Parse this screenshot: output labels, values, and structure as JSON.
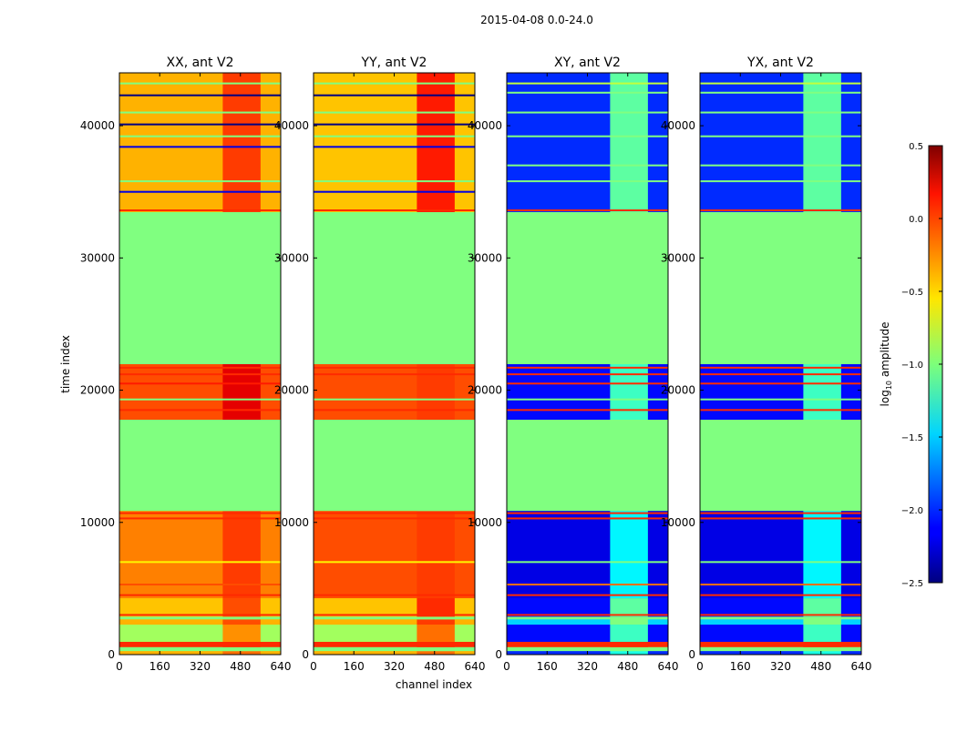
{
  "chart_data": {
    "type": "heatmap",
    "title": "2015-04-08 0.0-24.0",
    "xlabel": "channel index",
    "ylabel": "time index",
    "xlim": [
      0,
      640
    ],
    "ylim": [
      0,
      44000
    ],
    "xticks": [
      "0",
      "160",
      "320",
      "480",
      "640"
    ],
    "xtick_values": [
      0,
      160,
      320,
      480,
      640
    ],
    "yticks": [
      "0",
      "10000",
      "20000",
      "30000",
      "40000"
    ],
    "ytick_values": [
      0,
      10000,
      20000,
      30000,
      40000
    ],
    "colorbar": {
      "label_prefix": "log",
      "label_sub": "10",
      "label_suffix": " amplitude",
      "range": [
        -2.5,
        0.5
      ],
      "ticks": [
        "0.5",
        "0.0",
        "−0.5",
        "−1.0",
        "−1.5",
        "−2.0",
        "−2.5"
      ],
      "tick_values": [
        0.5,
        0.0,
        -0.5,
        -1.0,
        -1.5,
        -2.0,
        -2.5
      ],
      "colormap": "jet"
    },
    "hot_channel_range": [
      410,
      560
    ],
    "panels": [
      {
        "title": "XX, ant V2",
        "bands": [
          {
            "t0": 0,
            "t1": 300,
            "value": -0.4,
            "hot": -0.2
          },
          {
            "t0": 300,
            "t1": 600,
            "value": -1.0,
            "hot": -1.0
          },
          {
            "t0": 600,
            "t1": 1000,
            "value": 0.0,
            "hot": 0.0
          },
          {
            "t0": 1000,
            "t1": 2300,
            "value": -0.9,
            "hot": -0.3
          },
          {
            "t0": 2300,
            "t1": 2700,
            "value": -0.4,
            "hot": -0.1
          },
          {
            "t0": 2700,
            "t1": 2900,
            "value": -1.0,
            "hot": -1.0
          },
          {
            "t0": 2900,
            "t1": 4300,
            "value": -0.45,
            "hot": -0.1
          },
          {
            "t0": 4300,
            "t1": 10900,
            "value": -0.25,
            "hot": -0.05
          },
          {
            "t0": 10900,
            "t1": 17800,
            "value": -1.0,
            "hot": -1.0
          },
          {
            "t0": 17800,
            "t1": 22000,
            "value": -0.1,
            "hot": 0.2
          },
          {
            "t0": 22000,
            "t1": 33500,
            "value": -1.0,
            "hot": -1.0
          },
          {
            "t0": 33500,
            "t1": 44000,
            "value": -0.4,
            "hot": -0.05
          }
        ],
        "stripes": [
          {
            "t": 3000,
            "value": 0.0
          },
          {
            "t": 4500,
            "value": 0.0
          },
          {
            "t": 5300,
            "value": -0.1
          },
          {
            "t": 7000,
            "value": -0.6
          },
          {
            "t": 10300,
            "value": 0.0
          },
          {
            "t": 10700,
            "value": 0.0
          },
          {
            "t": 18500,
            "value": 0.0
          },
          {
            "t": 19300,
            "value": -1.0
          },
          {
            "t": 20500,
            "value": 0.05
          },
          {
            "t": 21200,
            "value": 0.0
          },
          {
            "t": 21700,
            "value": 0.0
          },
          {
            "t": 33600,
            "value": 0.0
          },
          {
            "t": 35000,
            "value": -2.2
          },
          {
            "t": 35800,
            "value": -1.0
          },
          {
            "t": 38400,
            "value": -2.2
          },
          {
            "t": 39200,
            "value": -1.0
          },
          {
            "t": 40100,
            "value": -2.5
          },
          {
            "t": 41000,
            "value": -1.0
          },
          {
            "t": 42300,
            "value": -2.5
          },
          {
            "t": 43200,
            "value": -1.0
          }
        ]
      },
      {
        "title": "YY, ant V2",
        "bands": [
          {
            "t0": 0,
            "t1": 300,
            "value": -0.4,
            "hot": -0.2
          },
          {
            "t0": 300,
            "t1": 600,
            "value": -1.0,
            "hot": -1.0
          },
          {
            "t0": 600,
            "t1": 1000,
            "value": 0.0,
            "hot": 0.0
          },
          {
            "t0": 1000,
            "t1": 2300,
            "value": -0.9,
            "hot": -0.2
          },
          {
            "t0": 2300,
            "t1": 2700,
            "value": -0.4,
            "hot": -0.05
          },
          {
            "t0": 2700,
            "t1": 2900,
            "value": -1.0,
            "hot": -1.0
          },
          {
            "t0": 2900,
            "t1": 4300,
            "value": -0.45,
            "hot": 0.0
          },
          {
            "t0": 4300,
            "t1": 10900,
            "value": -0.1,
            "hot": -0.05
          },
          {
            "t0": 10900,
            "t1": 17800,
            "value": -1.0,
            "hot": -1.0
          },
          {
            "t0": 17800,
            "t1": 22000,
            "value": -0.1,
            "hot": -0.05
          },
          {
            "t0": 22000,
            "t1": 33500,
            "value": -1.0,
            "hot": -1.0
          },
          {
            "t0": 33500,
            "t1": 44000,
            "value": -0.45,
            "hot": 0.05
          }
        ],
        "stripes": [
          {
            "t": 3000,
            "value": 0.0
          },
          {
            "t": 4500,
            "value": 0.0
          },
          {
            "t": 7000,
            "value": -0.6
          },
          {
            "t": 10300,
            "value": 0.0
          },
          {
            "t": 10700,
            "value": 0.0
          },
          {
            "t": 18500,
            "value": 0.0
          },
          {
            "t": 19300,
            "value": -1.0
          },
          {
            "t": 21200,
            "value": 0.0
          },
          {
            "t": 21700,
            "value": 0.0
          },
          {
            "t": 33600,
            "value": 0.0
          },
          {
            "t": 35000,
            "value": -2.2
          },
          {
            "t": 35800,
            "value": -1.0
          },
          {
            "t": 38400,
            "value": -2.2
          },
          {
            "t": 39200,
            "value": -1.0
          },
          {
            "t": 40100,
            "value": -2.5
          },
          {
            "t": 41000,
            "value": -1.0
          },
          {
            "t": 42300,
            "value": -2.5
          },
          {
            "t": 43200,
            "value": -1.0
          }
        ]
      },
      {
        "title": "XY, ant V2",
        "bands": [
          {
            "t0": 0,
            "t1": 300,
            "value": -2.0,
            "hot": -1.3
          },
          {
            "t0": 300,
            "t1": 600,
            "value": -1.0,
            "hot": -1.0
          },
          {
            "t0": 600,
            "t1": 1000,
            "value": 0.0,
            "hot": 0.0
          },
          {
            "t0": 1000,
            "t1": 2300,
            "value": -2.1,
            "hot": -1.2
          },
          {
            "t0": 2300,
            "t1": 2700,
            "value": -1.5,
            "hot": -1.0
          },
          {
            "t0": 2700,
            "t1": 2900,
            "value": -1.0,
            "hot": -1.0
          },
          {
            "t0": 2900,
            "t1": 4300,
            "value": -2.1,
            "hot": -1.1
          },
          {
            "t0": 4300,
            "t1": 10900,
            "value": -2.2,
            "hot": -1.4
          },
          {
            "t0": 10900,
            "t1": 17800,
            "value": -1.0,
            "hot": -1.0
          },
          {
            "t0": 17800,
            "t1": 22000,
            "value": -2.1,
            "hot": -1.2
          },
          {
            "t0": 22000,
            "t1": 33500,
            "value": -1.0,
            "hot": -1.0
          },
          {
            "t0": 33500,
            "t1": 44000,
            "value": -2.0,
            "hot": -1.1
          }
        ],
        "stripes": [
          {
            "t": 3000,
            "value": 0.0
          },
          {
            "t": 4500,
            "value": 0.0
          },
          {
            "t": 5300,
            "value": -0.2
          },
          {
            "t": 7000,
            "value": -1.0
          },
          {
            "t": 10300,
            "value": 0.0
          },
          {
            "t": 10700,
            "value": 0.0
          },
          {
            "t": 18500,
            "value": 0.0
          },
          {
            "t": 19300,
            "value": -1.0
          },
          {
            "t": 20500,
            "value": 0.0
          },
          {
            "t": 21200,
            "value": 0.0
          },
          {
            "t": 21700,
            "value": 0.0
          },
          {
            "t": 33600,
            "value": 0.0
          },
          {
            "t": 35800,
            "value": -1.0
          },
          {
            "t": 37000,
            "value": -1.0
          },
          {
            "t": 39200,
            "value": -1.0
          },
          {
            "t": 41000,
            "value": -1.0
          },
          {
            "t": 42500,
            "value": -1.0
          },
          {
            "t": 43200,
            "value": -0.8
          }
        ]
      },
      {
        "title": "YX, ant V2",
        "bands": [
          {
            "t0": 0,
            "t1": 300,
            "value": -2.0,
            "hot": -1.3
          },
          {
            "t0": 300,
            "t1": 600,
            "value": -1.0,
            "hot": -1.0
          },
          {
            "t0": 600,
            "t1": 1000,
            "value": 0.0,
            "hot": 0.0
          },
          {
            "t0": 1000,
            "t1": 2300,
            "value": -2.1,
            "hot": -1.2
          },
          {
            "t0": 2300,
            "t1": 2700,
            "value": -1.5,
            "hot": -1.0
          },
          {
            "t0": 2700,
            "t1": 2900,
            "value": -1.0,
            "hot": -1.0
          },
          {
            "t0": 2900,
            "t1": 4300,
            "value": -2.1,
            "hot": -1.1
          },
          {
            "t0": 4300,
            "t1": 10900,
            "value": -2.2,
            "hot": -1.4
          },
          {
            "t0": 10900,
            "t1": 17800,
            "value": -1.0,
            "hot": -1.0
          },
          {
            "t0": 17800,
            "t1": 22000,
            "value": -2.1,
            "hot": -1.2
          },
          {
            "t0": 22000,
            "t1": 33500,
            "value": -1.0,
            "hot": -1.0
          },
          {
            "t0": 33500,
            "t1": 44000,
            "value": -2.0,
            "hot": -1.1
          }
        ],
        "stripes": [
          {
            "t": 3000,
            "value": 0.0
          },
          {
            "t": 4500,
            "value": 0.0
          },
          {
            "t": 5300,
            "value": -0.2
          },
          {
            "t": 7000,
            "value": -1.0
          },
          {
            "t": 10300,
            "value": 0.0
          },
          {
            "t": 10700,
            "value": 0.0
          },
          {
            "t": 18500,
            "value": 0.0
          },
          {
            "t": 19300,
            "value": -1.0
          },
          {
            "t": 20500,
            "value": 0.0
          },
          {
            "t": 21200,
            "value": 0.0
          },
          {
            "t": 21700,
            "value": 0.0
          },
          {
            "t": 33600,
            "value": 0.0
          },
          {
            "t": 35800,
            "value": -1.0
          },
          {
            "t": 37000,
            "value": -1.0
          },
          {
            "t": 39200,
            "value": -1.0
          },
          {
            "t": 41000,
            "value": -1.0
          },
          {
            "t": 42500,
            "value": -1.0
          },
          {
            "t": 43200,
            "value": -0.8
          }
        ]
      }
    ]
  }
}
